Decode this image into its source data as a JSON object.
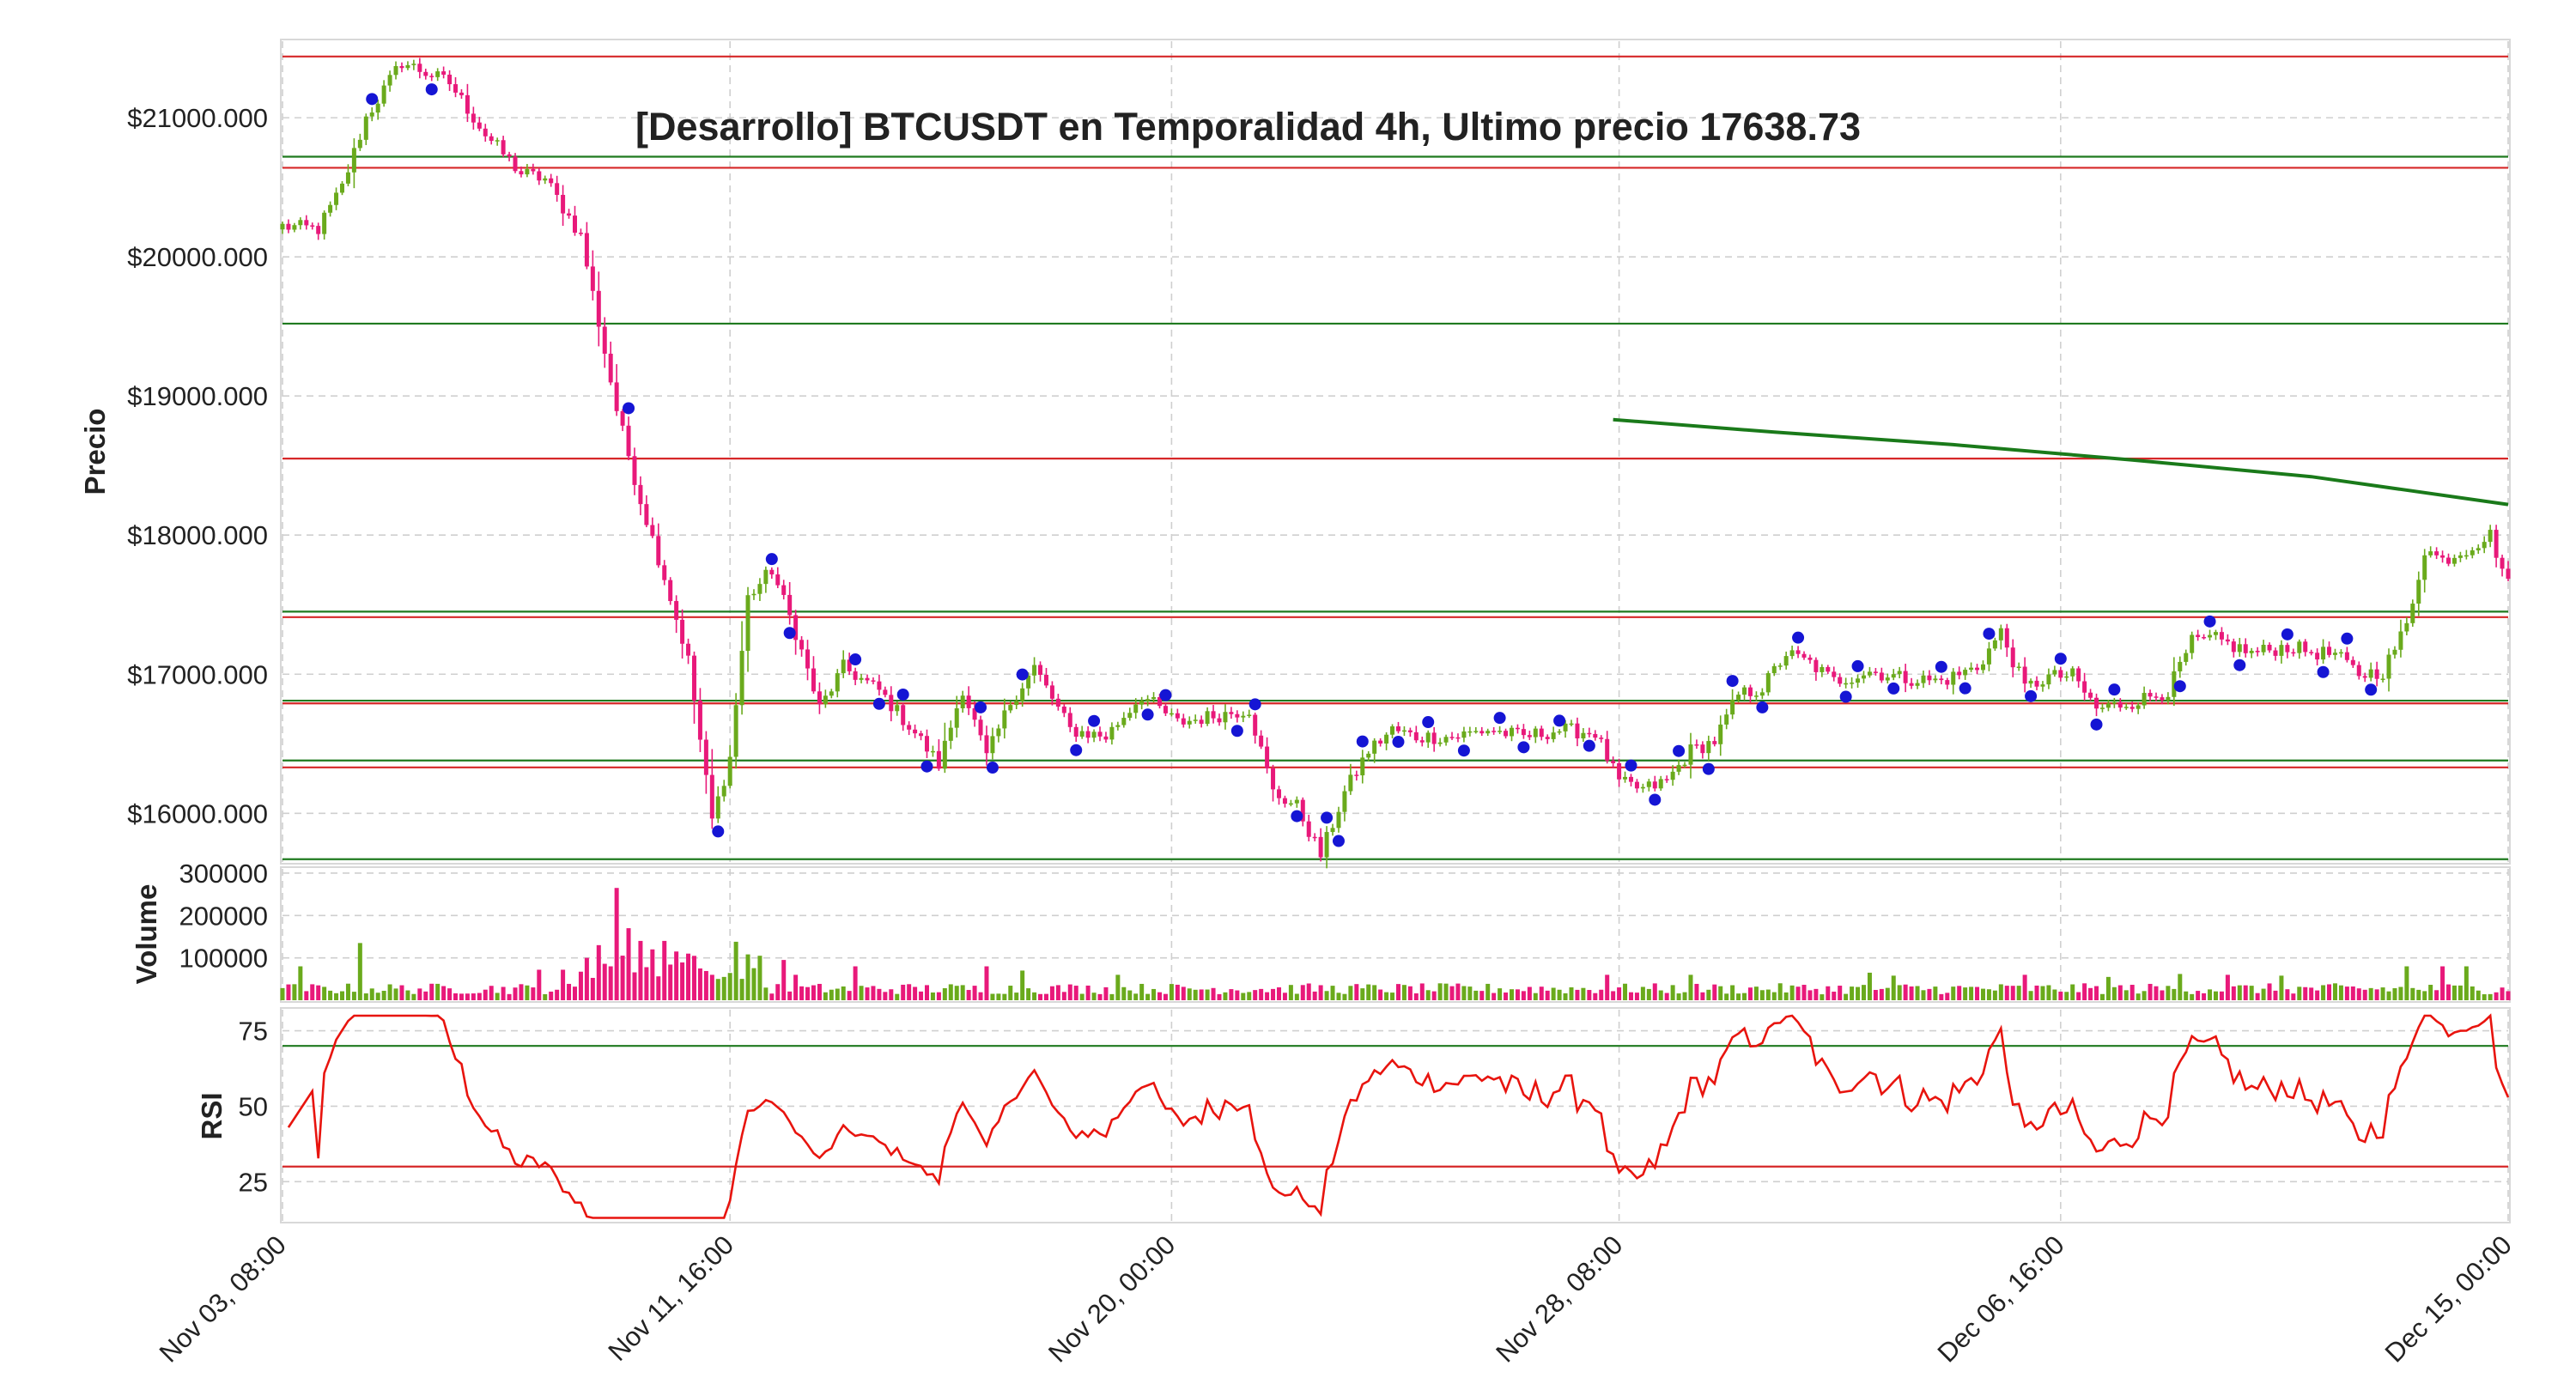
{
  "chart_data": {
    "type": "candlestick",
    "title": "[Desarrollo] BTCUSDT en Temporalidad 4h, Ultimo precio 17638.73",
    "x_tick_labels": [
      "Nov 03, 08:00",
      "Nov 11, 16:00",
      "Nov 20, 00:00",
      "Nov 28, 08:00",
      "Dec 06, 16:00",
      "Dec 15, 00:00"
    ],
    "grid": true,
    "colors": {
      "up": "#6aaa1c",
      "down": "#e8197a",
      "support": "#1f7a1f",
      "resistance": "#d62728",
      "rsi_line": "#e8140e",
      "sma_line": "#1a7a1a",
      "pivot_marker": "#1515d4"
    },
    "price_panel": {
      "ylabel": "Precio",
      "ylim": [
        15650,
        21550
      ],
      "yticks": [
        16000,
        17000,
        18000,
        19000,
        20000,
        21000
      ],
      "ytick_labels": [
        "$16000.000",
        "$17000.000",
        "$18000.000",
        "$19000.000",
        "$20000.000",
        "$21000.000"
      ],
      "support_levels": [
        15670,
        16380,
        16810,
        17450,
        19520,
        20720
      ],
      "resistance_levels": [
        16330,
        16790,
        17410,
        18550,
        20640,
        21440
      ],
      "close_anchors": [
        [
          0,
          20220
        ],
        [
          6,
          20200
        ],
        [
          10,
          20500
        ],
        [
          14,
          21000
        ],
        [
          20,
          21400
        ],
        [
          28,
          21250
        ],
        [
          34,
          20880
        ],
        [
          40,
          20600
        ],
        [
          44,
          20560
        ],
        [
          50,
          20150
        ],
        [
          56,
          18900
        ],
        [
          60,
          18250
        ],
        [
          64,
          17700
        ],
        [
          68,
          17100
        ],
        [
          72,
          15950
        ],
        [
          75,
          16400
        ],
        [
          78,
          17550
        ],
        [
          82,
          17750
        ],
        [
          86,
          17300
        ],
        [
          90,
          16750
        ],
        [
          94,
          17050
        ],
        [
          100,
          16880
        ],
        [
          106,
          16580
        ],
        [
          110,
          16350
        ],
        [
          114,
          16900
        ],
        [
          118,
          16400
        ],
        [
          122,
          16800
        ],
        [
          126,
          17050
        ],
        [
          132,
          16600
        ],
        [
          138,
          16550
        ],
        [
          144,
          16850
        ],
        [
          150,
          16650
        ],
        [
          156,
          16700
        ],
        [
          162,
          16750
        ],
        [
          166,
          16150
        ],
        [
          170,
          16050
        ],
        [
          174,
          15700
        ],
        [
          178,
          16150
        ],
        [
          182,
          16450
        ],
        [
          186,
          16600
        ],
        [
          190,
          16550
        ],
        [
          196,
          16550
        ],
        [
          202,
          16600
        ],
        [
          208,
          16550
        ],
        [
          214,
          16600
        ],
        [
          220,
          16580
        ],
        [
          224,
          16220
        ],
        [
          228,
          16170
        ],
        [
          232,
          16230
        ],
        [
          236,
          16450
        ],
        [
          240,
          16520
        ],
        [
          244,
          16850
        ],
        [
          248,
          16900
        ],
        [
          252,
          17150
        ],
        [
          256,
          17080
        ],
        [
          260,
          16950
        ],
        [
          266,
          17020
        ],
        [
          272,
          16970
        ],
        [
          278,
          16950
        ],
        [
          284,
          17050
        ],
        [
          288,
          17300
        ],
        [
          292,
          16900
        ],
        [
          296,
          16980
        ],
        [
          300,
          16990
        ],
        [
          304,
          16750
        ],
        [
          310,
          16800
        ],
        [
          316,
          16880
        ],
        [
          320,
          17230
        ],
        [
          324,
          17250
        ],
        [
          330,
          17150
        ],
        [
          336,
          17200
        ],
        [
          340,
          17160
        ],
        [
          344,
          17140
        ],
        [
          348,
          17000
        ],
        [
          352,
          17020
        ],
        [
          356,
          17350
        ],
        [
          359,
          17900
        ],
        [
          362,
          17820
        ],
        [
          366,
          17900
        ],
        [
          370,
          18000
        ],
        [
          373,
          17640
        ]
      ],
      "sma_start_index": 223,
      "sma_points": [
        [
          223,
          18830
        ],
        [
          250,
          18740
        ],
        [
          280,
          18650
        ],
        [
          310,
          18540
        ],
        [
          340,
          18420
        ],
        [
          373,
          18220
        ]
      ],
      "pivot_indices": [
        15,
        25,
        58,
        73,
        82,
        85,
        96,
        100,
        104,
        108,
        117,
        119,
        124,
        133,
        136,
        145,
        148,
        160,
        163,
        170,
        175,
        177,
        181,
        187,
        192,
        198,
        204,
        208,
        214,
        219,
        226,
        230,
        234,
        239,
        243,
        248,
        254,
        262,
        264,
        270,
        278,
        282,
        286,
        293,
        298,
        304,
        307,
        318,
        323,
        328,
        336,
        342,
        346,
        350
      ]
    },
    "volume_panel": {
      "ylabel": "Volume",
      "ylim": [
        0,
        310000
      ],
      "yticks": [
        100000,
        200000,
        300000
      ],
      "ytick_labels": [
        "100000",
        "200000",
        "300000"
      ],
      "spike_anchors": [
        [
          3,
          80000
        ],
        [
          13,
          135000
        ],
        [
          43,
          72000
        ],
        [
          47,
          72000
        ],
        [
          51,
          100000
        ],
        [
          53,
          130000
        ],
        [
          55,
          80000
        ],
        [
          56,
          265000
        ],
        [
          58,
          170000
        ],
        [
          60,
          140000
        ],
        [
          62,
          120000
        ],
        [
          64,
          140000
        ],
        [
          66,
          115000
        ],
        [
          68,
          110000
        ],
        [
          70,
          75000
        ],
        [
          72,
          60000
        ],
        [
          74,
          55000
        ],
        [
          76,
          138000
        ],
        [
          80,
          105000
        ],
        [
          84,
          95000
        ],
        [
          86,
          60000
        ],
        [
          96,
          80000
        ],
        [
          118,
          80000
        ],
        [
          124,
          70000
        ],
        [
          140,
          60000
        ],
        [
          222,
          60000
        ],
        [
          236,
          60000
        ],
        [
          266,
          65000
        ],
        [
          270,
          58000
        ],
        [
          292,
          60000
        ],
        [
          306,
          55000
        ],
        [
          318,
          62000
        ],
        [
          326,
          60000
        ],
        [
          335,
          58000
        ],
        [
          356,
          80000
        ],
        [
          362,
          80000
        ],
        [
          366,
          80000
        ],
        [
          372,
          30000
        ]
      ]
    },
    "rsi_panel": {
      "ylabel": "RSI",
      "ylim": [
        12,
        82
      ],
      "yticks": [
        25,
        50,
        75
      ],
      "ytick_labels": [
        "25",
        "50",
        "75"
      ],
      "overbought": 70,
      "oversold": 30
    },
    "num_candles": 374
  }
}
